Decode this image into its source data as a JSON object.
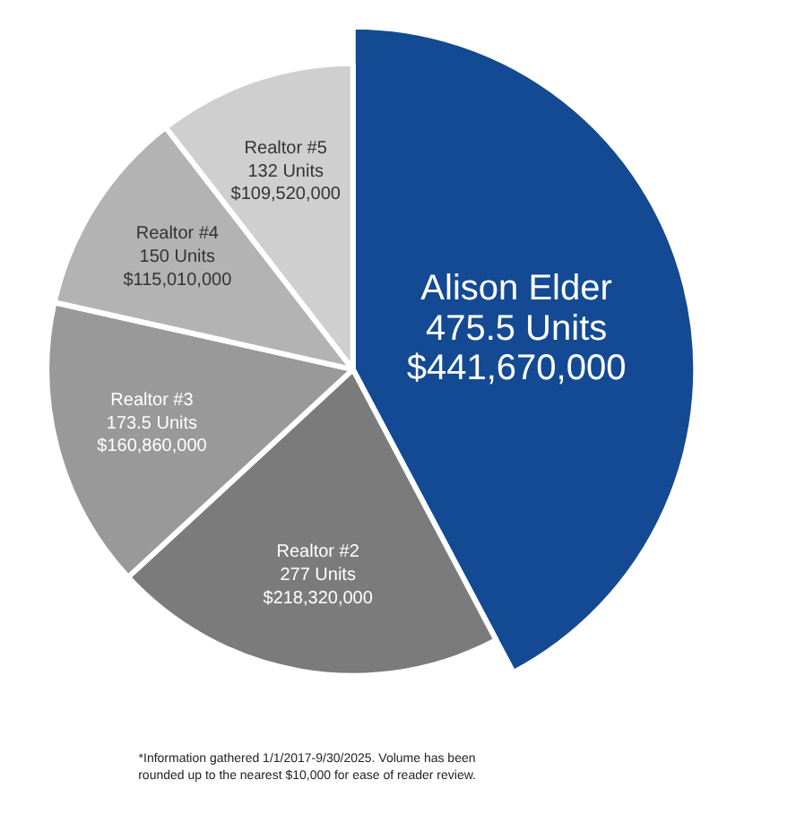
{
  "chart_data": {
    "type": "pie",
    "categories": [
      "Alison Elder",
      "Realtor #2",
      "Realtor #3",
      "Realtor #4",
      "Realtor #5"
    ],
    "values": [
      441670000,
      218320000,
      160860000,
      115010000,
      109520000
    ],
    "value_labels": [
      "475.5 Units\n$441,670,000",
      "277 Units\n$218,320,000",
      "173.5 Units\n$160,860,000",
      "150 Units\n$115,010,000",
      "132 Units\n$109,520,000"
    ],
    "colors": [
      "#134a93",
      "#7b7b7b",
      "#999999",
      "#b3b3b3",
      "#cfcfcf"
    ],
    "annotations": [
      "*Information gathered 1/1/2017-9/30/2025. Volume has been rounded up to the nearest $10,000 for ease of reader review."
    ]
  }
}
